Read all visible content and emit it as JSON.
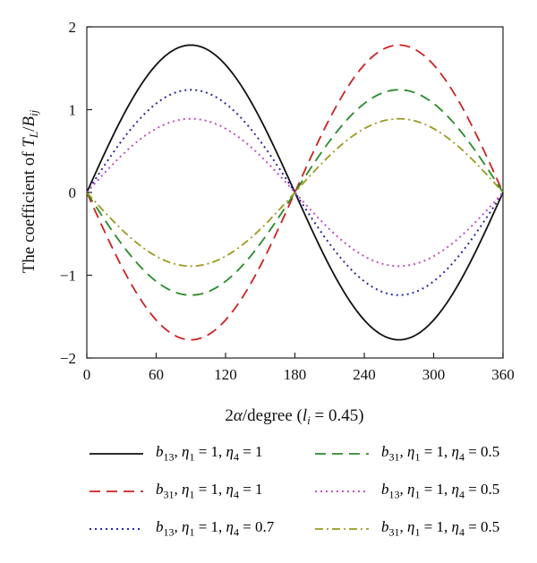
{
  "chart_data": {
    "type": "line",
    "title": "",
    "ylabel": "The coefficient of T_L/B_ij",
    "xlabel": "2α/degree (l_i = 0.45)",
    "xlim": [
      0,
      360
    ],
    "ylim": [
      -2,
      2
    ],
    "xticks": [
      "0",
      "60",
      "120",
      "180",
      "240",
      "300",
      "360"
    ],
    "yticks": [
      "2",
      "1",
      "0",
      "−1",
      "−2"
    ],
    "grid": false,
    "legend_position": "below",
    "series": [
      {
        "name": "b13, η1 = 1, η4 = 1",
        "function": "sin",
        "amplitude": 1.78,
        "color": "#111111",
        "style": "solid"
      },
      {
        "name": "b31, η1 = 1, η4 = 1",
        "function": "-sin",
        "amplitude": 1.78,
        "color": "#cc2222",
        "style": "dashed"
      },
      {
        "name": "b13, η1 = 1, η4 = 0.7",
        "function": "sin",
        "amplitude": 1.24,
        "color": "#2a2aa0",
        "style": "dotted"
      },
      {
        "name": "b31, η1 = 1, η4 = 0.5",
        "function": "-sin",
        "amplitude": 1.24,
        "color": "#2a8a2a",
        "style": "dashed"
      },
      {
        "name": "b13, η1 = 1, η4 = 0.5",
        "function": "sin",
        "amplitude": 0.89,
        "color": "#c050c0",
        "style": "dotted"
      },
      {
        "name": "b31, η1 = 1, η4 = 0.5",
        "function": "-sin",
        "amplitude": 0.89,
        "color": "#9a9a20",
        "style": "dashdot"
      }
    ],
    "x": [
      0,
      30,
      60,
      90,
      120,
      150,
      180,
      210,
      240,
      270,
      300,
      330,
      360
    ]
  }
}
